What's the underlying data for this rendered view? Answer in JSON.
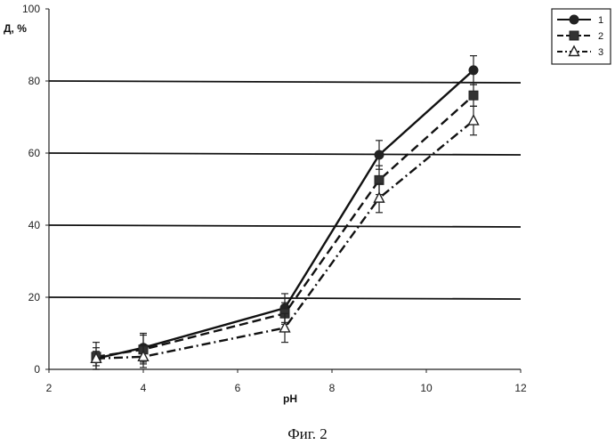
{
  "chart_data": {
    "type": "line",
    "xlabel": "pH",
    "ylabel": "Д, %",
    "xlim": [
      2,
      12
    ],
    "ylim": [
      0,
      100
    ],
    "xticks": [
      2,
      4,
      6,
      8,
      10,
      12
    ],
    "yticks": [
      0,
      20,
      40,
      60,
      80,
      100
    ],
    "grid": "horizontal",
    "legend_position": "top-right",
    "series": [
      {
        "name": "1",
        "marker": "circle",
        "line": "solid",
        "x": [
          3,
          4,
          7,
          9,
          11
        ],
        "y": [
          3,
          6,
          17,
          59.5,
          83
        ],
        "error": [
          3,
          4,
          4,
          4,
          4
        ]
      },
      {
        "name": "2",
        "marker": "square",
        "line": "dashed",
        "x": [
          3,
          4,
          7,
          9,
          11
        ],
        "y": [
          3.5,
          5.5,
          15.5,
          52.5,
          76
        ],
        "error": [
          4,
          4,
          3,
          4,
          3
        ]
      },
      {
        "name": "3",
        "marker": "triangle",
        "line": "dash-dot",
        "x": [
          3,
          4,
          7,
          9,
          11
        ],
        "y": [
          3,
          3.5,
          11.5,
          47.5,
          69
        ],
        "error": [
          2,
          3,
          4,
          4,
          4
        ]
      }
    ]
  },
  "caption": "Фиг. 2"
}
